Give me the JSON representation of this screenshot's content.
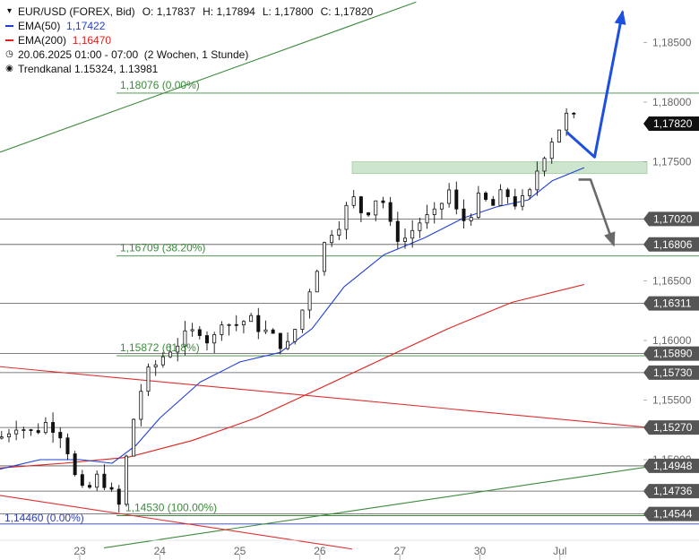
{
  "legend": {
    "title": "EUR/USD (FOREX, Bid)",
    "ohlc": [
      {
        "label": "O:",
        "value": "1,17837"
      },
      {
        "label": "H:",
        "value": "1,17894"
      },
      {
        "label": "L:",
        "value": "1,17800"
      },
      {
        "label": "C:",
        "value": "1,17820"
      }
    ],
    "ema50": {
      "label": "EMA(50)",
      "value": "1,17422",
      "color": "#1f3fd6"
    },
    "ema200": {
      "label": "EMA(200)",
      "value": "1,16470",
      "color": "#e0201b"
    },
    "period": {
      "icon": "clock-icon",
      "text": "20.06.2025 01:00 - 07:00",
      "range": "(2 Wochen, 1 Stunde)"
    },
    "channel": {
      "icon": "target-icon",
      "label": "Trendkanal",
      "values": "1.15324, 1.13981"
    }
  },
  "chart_data": {
    "type": "candlestick",
    "instrument": "EUR/USD (FOREX, Bid)",
    "ylim": [
      1.143,
      1.188
    ],
    "y_ticks": [
      {
        "value": 1.185,
        "label": "1,18500"
      },
      {
        "value": 1.18,
        "label": "1,18000"
      },
      {
        "value": 1.175,
        "label": "1,17500"
      },
      {
        "value": 1.165,
        "label": "1,16500"
      },
      {
        "value": 1.16,
        "label": "1,16000"
      },
      {
        "value": 1.155,
        "label": "1,15500"
      },
      {
        "value": 1.15,
        "label": "1,15000"
      }
    ],
    "x_ticks": [
      {
        "session": 1,
        "label": "23"
      },
      {
        "session": 2,
        "label": "24"
      },
      {
        "session": 3,
        "label": "25"
      },
      {
        "session": 4,
        "label": "26"
      },
      {
        "session": 5,
        "label": "27"
      },
      {
        "session": 6,
        "label": "30"
      },
      {
        "session": 7,
        "label": "Jul"
      }
    ],
    "x_range": [
      0.0,
      8.7
    ],
    "price_tags": [
      {
        "value": 1.1782,
        "label": "1,17820",
        "current": true
      },
      {
        "value": 1.1702,
        "label": "1,17020"
      },
      {
        "value": 1.16806,
        "label": "1,16806"
      },
      {
        "value": 1.16311,
        "label": "1,16311"
      },
      {
        "value": 1.1589,
        "label": "1,15890"
      },
      {
        "value": 1.1573,
        "label": "1,15730"
      },
      {
        "value": 1.1527,
        "label": "1,15270"
      },
      {
        "value": 1.14948,
        "label": "1,14948"
      },
      {
        "value": 1.14736,
        "label": "1,14736"
      },
      {
        "value": 1.14544,
        "label": "1,14544"
      }
    ],
    "fibonacci": [
      {
        "value": 1.18076,
        "label": "1,18076 (0.00%)"
      },
      {
        "value": 1.16709,
        "label": "1,16709 (38.20%)"
      },
      {
        "value": 1.15872,
        "label": "1,15872 (61.8%)"
      },
      {
        "value": 1.1453,
        "label": "1,14530 (100.00%)"
      }
    ],
    "low_label": {
      "value": 1.1446,
      "label": "1,14460 (0.00%)"
    },
    "resistance_zone": [
      1.174,
      1.175
    ],
    "trend_lines": [
      {
        "name": "upper-channel",
        "color": "#3c8a3c",
        "points": [
          [
            0.0,
            1.1758
          ],
          [
            5.2,
            1.1884
          ]
        ]
      },
      {
        "name": "lower-channel",
        "color": "#3c8a3c",
        "points": [
          [
            1.3,
            1.1426
          ],
          [
            8.7,
            1.15
          ]
        ]
      },
      {
        "name": "falling-resistance",
        "color": "#e03030",
        "points": [
          [
            0.0,
            1.1578
          ],
          [
            8.1,
            1.1527
          ]
        ]
      },
      {
        "name": "falling-support",
        "color": "#e03030",
        "points": [
          [
            0.0,
            1.147
          ],
          [
            4.4,
            1.1425
          ]
        ]
      }
    ],
    "scenario_arrows": [
      {
        "name": "bullish",
        "color": "#1d4fe0",
        "points": [
          [
            7.08,
            1.1775
          ],
          [
            7.43,
            1.1754
          ],
          [
            7.78,
            1.1876
          ]
        ]
      },
      {
        "name": "bearish",
        "color": "#6a6a6a",
        "points": [
          [
            7.23,
            1.1735
          ],
          [
            7.38,
            1.1735
          ],
          [
            7.67,
            1.168
          ]
        ]
      }
    ],
    "ema50_points": [
      [
        0.0,
        1.1492
      ],
      [
        0.5,
        1.15
      ],
      [
        1.0,
        1.15
      ],
      [
        1.4,
        1.1497
      ],
      [
        1.7,
        1.1512
      ],
      [
        2.0,
        1.1535
      ],
      [
        2.5,
        1.1565
      ],
      [
        3.0,
        1.1582
      ],
      [
        3.5,
        1.159
      ],
      [
        3.9,
        1.161
      ],
      [
        4.3,
        1.1645
      ],
      [
        4.8,
        1.1672
      ],
      [
        5.3,
        1.1686
      ],
      [
        5.8,
        1.1703
      ],
      [
        6.2,
        1.1712
      ],
      [
        6.6,
        1.1718
      ],
      [
        6.9,
        1.1734
      ],
      [
        7.3,
        1.1745
      ]
    ],
    "ema200_points": [
      [
        0.0,
        1.1493
      ],
      [
        0.8,
        1.1497
      ],
      [
        1.6,
        1.1502
      ],
      [
        2.4,
        1.1516
      ],
      [
        3.2,
        1.1535
      ],
      [
        4.0,
        1.156
      ],
      [
        4.8,
        1.1585
      ],
      [
        5.6,
        1.161
      ],
      [
        6.4,
        1.1632
      ],
      [
        7.3,
        1.1647
      ]
    ],
    "close_path": [
      [
        0.0,
        1.1518
      ],
      [
        0.2,
        1.153
      ],
      [
        0.4,
        1.1522
      ],
      [
        0.6,
        1.1532
      ],
      [
        0.8,
        1.152
      ],
      [
        0.95,
        1.1482
      ],
      [
        1.05,
        1.147
      ],
      [
        1.25,
        1.1488
      ],
      [
        1.4,
        1.147
      ],
      [
        1.5,
        1.146
      ],
      [
        1.58,
        1.1502
      ],
      [
        1.68,
        1.1538
      ],
      [
        1.8,
        1.1568
      ],
      [
        1.95,
        1.158
      ],
      [
        2.1,
        1.1592
      ],
      [
        2.3,
        1.1602
      ],
      [
        2.5,
        1.161
      ],
      [
        2.65,
        1.1595
      ],
      [
        2.75,
        1.162
      ],
      [
        2.9,
        1.1612
      ],
      [
        3.1,
        1.1618
      ],
      [
        3.3,
        1.1608
      ],
      [
        3.45,
        1.16
      ],
      [
        3.6,
        1.1595
      ],
      [
        3.75,
        1.162
      ],
      [
        3.95,
        1.166
      ],
      [
        4.1,
        1.169
      ],
      [
        4.25,
        1.17
      ],
      [
        4.4,
        1.172
      ],
      [
        4.55,
        1.1705
      ],
      [
        4.75,
        1.1725
      ],
      [
        4.9,
        1.169
      ],
      [
        5.05,
        1.1685
      ],
      [
        5.25,
        1.17
      ],
      [
        5.45,
        1.1705
      ],
      [
        5.6,
        1.1728
      ],
      [
        5.75,
        1.1698
      ],
      [
        5.85,
        1.1705
      ],
      [
        6.0,
        1.172
      ],
      [
        6.15,
        1.1712
      ],
      [
        6.3,
        1.1725
      ],
      [
        6.45,
        1.1715
      ],
      [
        6.6,
        1.1718
      ],
      [
        6.72,
        1.1745
      ],
      [
        6.85,
        1.1765
      ],
      [
        6.98,
        1.1778
      ],
      [
        7.1,
        1.179
      ],
      [
        7.22,
        1.1782
      ]
    ]
  }
}
